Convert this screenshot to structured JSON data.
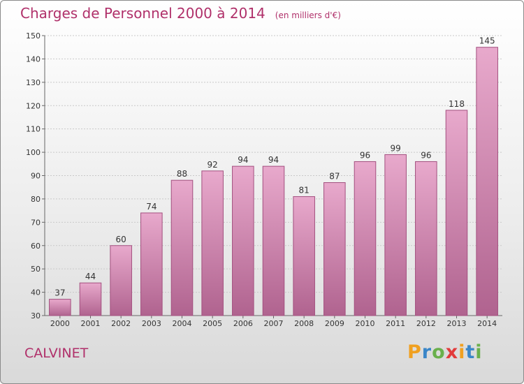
{
  "header": {
    "title": "Charges de Personnel 2000 à 2014",
    "subtitle": "(en milliers d'€)"
  },
  "footer": {
    "commune": "CALVINET",
    "logo": {
      "letters": [
        "P",
        "r",
        "o",
        "x",
        "i",
        "t",
        "i"
      ],
      "colors": [
        "#f0a020",
        "#3a86c8",
        "#6ab04c",
        "#e23b3b",
        "#f0a020",
        "#3a86c8",
        "#6ab04c"
      ]
    }
  },
  "colors": {
    "bar_top": "#e8a9cc",
    "bar_bottom": "#b0638f",
    "bar_edge": "#a3507f",
    "grid": "#c9c9c9",
    "text_accent": "#b0306a"
  },
  "chart_data": {
    "type": "bar",
    "title": "Charges de Personnel 2000 à 2014",
    "subtitle": "(en milliers d'€)",
    "xlabel": "",
    "ylabel": "",
    "categories": [
      "2000",
      "2001",
      "2002",
      "2003",
      "2004",
      "2005",
      "2006",
      "2007",
      "2008",
      "2009",
      "2010",
      "2011",
      "2012",
      "2013",
      "2014"
    ],
    "values": [
      37,
      44,
      60,
      74,
      88,
      92,
      94,
      94,
      81,
      87,
      96,
      99,
      96,
      118,
      145
    ],
    "ylim": [
      30,
      150
    ],
    "yticks": [
      30,
      40,
      50,
      60,
      70,
      80,
      90,
      100,
      110,
      120,
      130,
      140,
      150
    ],
    "grid": true,
    "legend": "none"
  }
}
